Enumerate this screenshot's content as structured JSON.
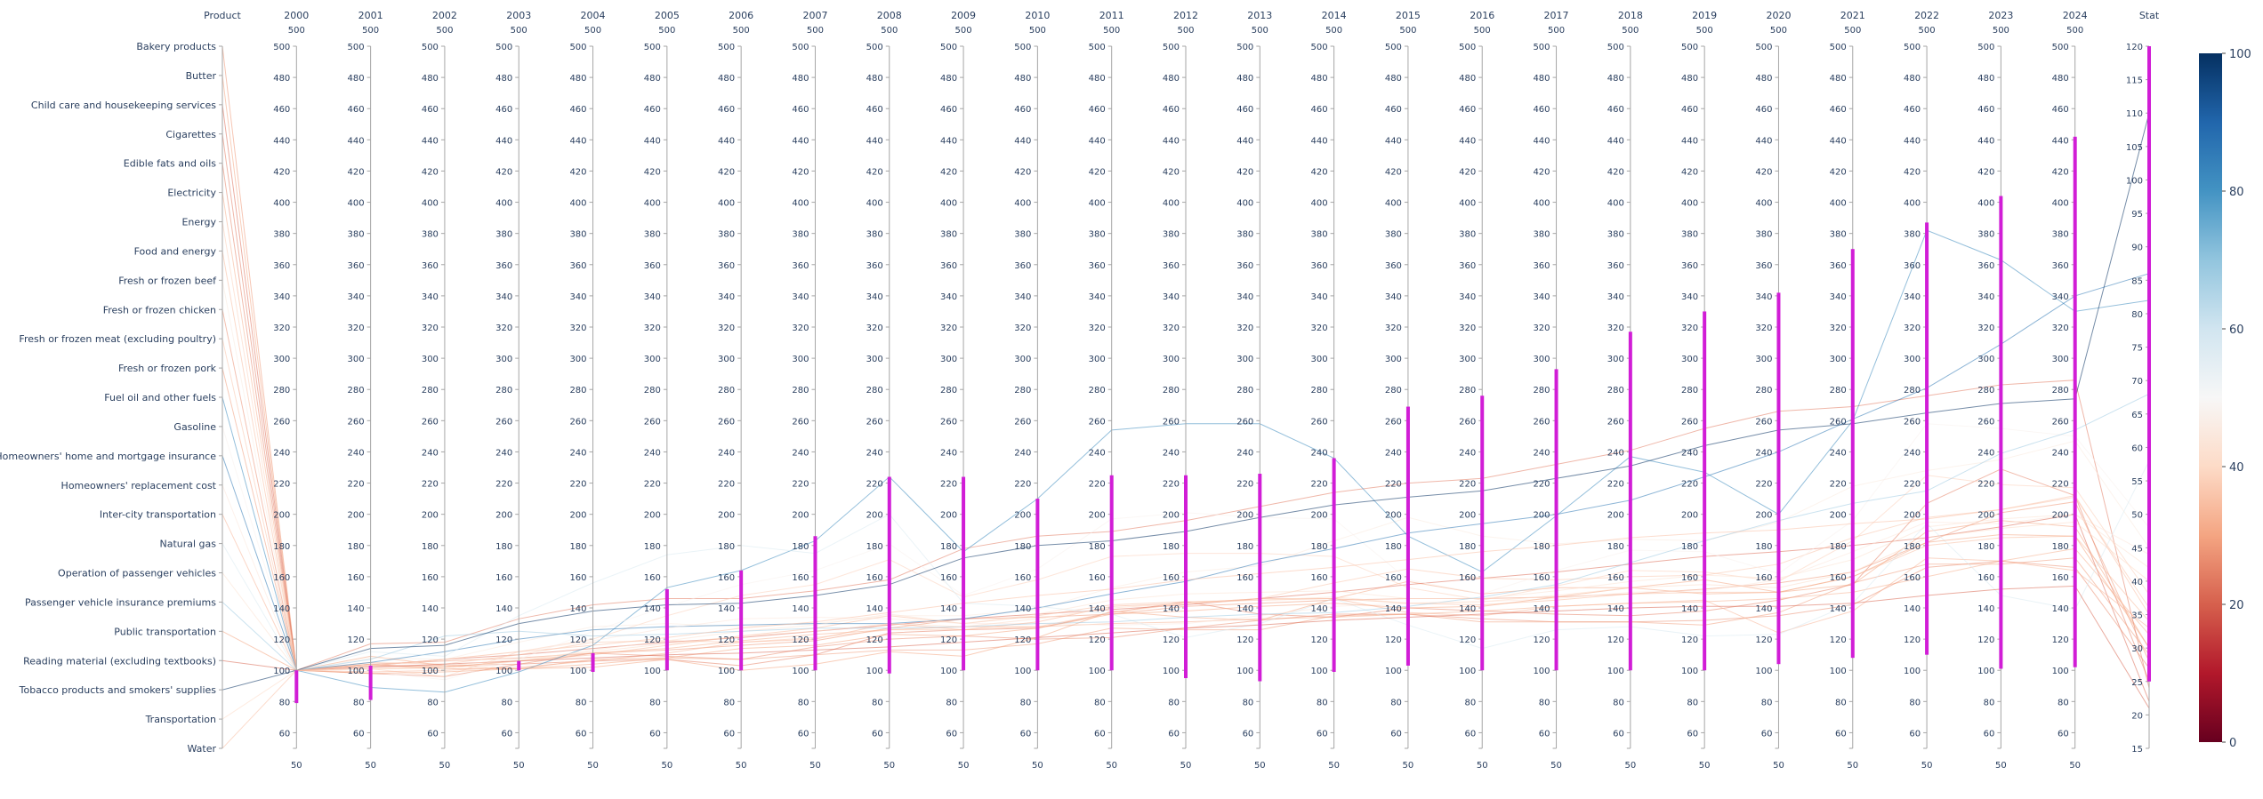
{
  "chart_data": {
    "type": "parallel_coordinates",
    "dimensions": [
      {
        "label": "Product",
        "type": "categorical",
        "tick_labels": [
          "Bakery products",
          "Butter",
          "Child care and housekeeping services",
          "Cigarettes",
          "Edible fats and oils",
          "Electricity",
          "Energy",
          "Food and energy",
          "Fresh or frozen beef",
          "Fresh or frozen chicken",
          "Fresh or frozen meat (excluding poultry)",
          "Fresh or frozen pork",
          "Fuel oil and other fuels",
          "Gasoline",
          "Homeowners' home and mortgage insurance",
          "Homeowners' replacement cost",
          "Inter-city transportation",
          "Natural gas",
          "Operation of passenger vehicles",
          "Passenger vehicle insurance premiums",
          "Public transportation",
          "Reading material (excluding textbooks)",
          "Tobacco products and smokers' supplies",
          "Transportation",
          "Water"
        ]
      },
      {
        "label": "2000",
        "range": [
          50,
          500
        ],
        "constraint": [
          79,
          100
        ]
      },
      {
        "label": "2001",
        "range": [
          50,
          500
        ],
        "constraint": [
          81,
          103
        ]
      },
      {
        "label": "2002",
        "range": [
          50,
          500
        ],
        "constraint": null
      },
      {
        "label": "2003",
        "range": [
          50,
          500
        ],
        "constraint": [
          100,
          106
        ]
      },
      {
        "label": "2004",
        "range": [
          50,
          500
        ],
        "constraint": [
          99,
          111
        ]
      },
      {
        "label": "2005",
        "range": [
          50,
          500
        ],
        "constraint": [
          100,
          152
        ]
      },
      {
        "label": "2006",
        "range": [
          50,
          500
        ],
        "constraint": [
          100,
          164
        ]
      },
      {
        "label": "2007",
        "range": [
          50,
          500
        ],
        "constraint": [
          100,
          186
        ]
      },
      {
        "label": "2008",
        "range": [
          50,
          500
        ],
        "constraint": [
          98,
          224
        ]
      },
      {
        "label": "2009",
        "range": [
          50,
          500
        ],
        "constraint": [
          100,
          224
        ]
      },
      {
        "label": "2010",
        "range": [
          50,
          500
        ],
        "constraint": [
          100,
          210
        ]
      },
      {
        "label": "2011",
        "range": [
          50,
          500
        ],
        "constraint": [
          100,
          225
        ]
      },
      {
        "label": "2012",
        "range": [
          50,
          500
        ],
        "constraint": [
          95,
          225
        ]
      },
      {
        "label": "2013",
        "range": [
          50,
          500
        ],
        "constraint": [
          93,
          226
        ]
      },
      {
        "label": "2014",
        "range": [
          50,
          500
        ],
        "constraint": [
          99,
          236
        ]
      },
      {
        "label": "2015",
        "range": [
          50,
          500
        ],
        "constraint": [
          103,
          269
        ]
      },
      {
        "label": "2016",
        "range": [
          50,
          500
        ],
        "constraint": [
          100,
          276
        ]
      },
      {
        "label": "2017",
        "range": [
          50,
          500
        ],
        "constraint": [
          100,
          293
        ]
      },
      {
        "label": "2018",
        "range": [
          50,
          500
        ],
        "constraint": [
          100,
          317
        ]
      },
      {
        "label": "2019",
        "range": [
          50,
          500
        ],
        "constraint": [
          100,
          330
        ]
      },
      {
        "label": "2020",
        "range": [
          50,
          500
        ],
        "constraint": [
          104,
          342
        ]
      },
      {
        "label": "2021",
        "range": [
          50,
          500
        ],
        "constraint": [
          108,
          370
        ]
      },
      {
        "label": "2022",
        "range": [
          50,
          500
        ],
        "constraint": [
          110,
          387
        ]
      },
      {
        "label": "2023",
        "range": [
          50,
          500
        ],
        "constraint": [
          101,
          404
        ]
      },
      {
        "label": "2024",
        "range": [
          50,
          500
        ],
        "constraint": [
          102,
          442
        ]
      },
      {
        "label": "Stat",
        "range": [
          15,
          120
        ],
        "constraint": [
          25,
          120
        ]
      }
    ],
    "axis_ticks": [
      50,
      60,
      80,
      100,
      120,
      140,
      160,
      180,
      200,
      220,
      240,
      260,
      280,
      300,
      320,
      340,
      360,
      380,
      400,
      420,
      440,
      460,
      480,
      500
    ],
    "stat_ticks": [
      15,
      20,
      25,
      30,
      35,
      40,
      45,
      50,
      55,
      60,
      65,
      70,
      75,
      80,
      85,
      90,
      95,
      100,
      105,
      110,
      115,
      120
    ],
    "colorscale": {
      "name": "RdBu",
      "range": [
        0,
        100
      ],
      "ticks": [
        0,
        20,
        40,
        60,
        80,
        100
      ]
    },
    "lines": [
      {
        "product": "Bakery products",
        "values": [
          100,
          104,
          106,
          108,
          111,
          113,
          116,
          119,
          127,
          133,
          134,
          136,
          141,
          143,
          145,
          146,
          146,
          147,
          149,
          152,
          156,
          163,
          182,
          201,
          208
        ],
        "stat": 28
      },
      {
        "product": "Butter",
        "values": [
          100,
          109,
          103,
          101,
          102,
          107,
          100,
          104,
          112,
          109,
          121,
          138,
          134,
          132,
          146,
          157,
          149,
          153,
          153,
          149,
          150,
          155,
          189,
          196,
          192
        ],
        "stat": 30
      },
      {
        "product": "Child care and housekeeping services",
        "values": [
          100,
          103,
          107,
          110,
          114,
          118,
          121,
          125,
          129,
          133,
          136,
          139,
          142,
          146,
          150,
          155,
          159,
          163,
          168,
          173,
          176,
          180,
          185,
          192,
          200
        ],
        "stat": 22
      },
      {
        "product": "Cigarettes",
        "values": [
          100,
          117,
          118,
          133,
          142,
          146,
          146,
          151,
          158,
          178,
          186,
          189,
          196,
          205,
          214,
          220,
          223,
          232,
          241,
          255,
          266,
          269,
          276,
          283,
          286
        ],
        "stat": 24
      },
      {
        "product": "Edible fats and oils",
        "values": [
          100,
          98,
          96,
          104,
          106,
          107,
          103,
          110,
          124,
          126,
          127,
          137,
          144,
          136,
          134,
          140,
          138,
          136,
          135,
          138,
          145,
          155,
          207,
          229,
          212
        ],
        "stat": 25
      },
      {
        "product": "Electricity",
        "values": [
          100,
          101,
          102,
          106,
          111,
          114,
          119,
          123,
          126,
          128,
          128,
          130,
          131,
          133,
          134,
          136,
          138,
          141,
          143,
          144,
          146,
          150,
          160,
          170,
          178
        ],
        "stat": 32
      },
      {
        "product": "Energy",
        "values": [
          100,
          101,
          96,
          112,
          120,
          135,
          148,
          155,
          171,
          147,
          158,
          173,
          175,
          175,
          173,
          153,
          145,
          154,
          164,
          163,
          157,
          183,
          225,
          219,
          217
        ],
        "stat": 38
      },
      {
        "product": "Food and energy",
        "values": [
          100,
          103,
          102,
          106,
          110,
          116,
          122,
          127,
          135,
          130,
          135,
          142,
          144,
          145,
          146,
          143,
          142,
          145,
          149,
          150,
          150,
          160,
          180,
          185,
          186
        ],
        "stat": 34
      },
      {
        "product": "Fresh or frozen beef",
        "values": [
          100,
          108,
          107,
          118,
          128,
          130,
          128,
          130,
          135,
          135,
          139,
          153,
          163,
          167,
          183,
          198,
          186,
          181,
          184,
          183,
          195,
          218,
          228,
          235,
          247
        ],
        "stat": 45
      },
      {
        "product": "Fresh or frozen chicken",
        "values": [
          100,
          103,
          103,
          104,
          111,
          109,
          107,
          115,
          120,
          122,
          120,
          121,
          127,
          132,
          136,
          136,
          133,
          131,
          131,
          132,
          135,
          142,
          166,
          170,
          166
        ],
        "stat": 27
      },
      {
        "product": "Fresh or frozen meat (excluding poultry)",
        "values": [
          100,
          105,
          104,
          110,
          118,
          119,
          118,
          121,
          126,
          126,
          128,
          137,
          143,
          146,
          156,
          165,
          159,
          158,
          160,
          161,
          168,
          185,
          198,
          203,
          211
        ],
        "stat": 36
      },
      {
        "product": "Fresh or frozen pork",
        "values": [
          100,
          104,
          101,
          101,
          107,
          108,
          107,
          110,
          113,
          113,
          117,
          127,
          126,
          126,
          135,
          136,
          131,
          131,
          131,
          129,
          137,
          156,
          168,
          168,
          172
        ],
        "stat": 29
      },
      {
        "product": "Fuel oil and other fuels",
        "values": [
          100,
          89,
          86,
          99,
          116,
          153,
          164,
          183,
          224,
          176,
          210,
          254,
          258,
          258,
          236,
          186,
          163,
          199,
          237,
          227,
          200,
          260,
          382,
          363,
          330
        ],
        "stat": 82
      },
      {
        "product": "Gasoline",
        "values": [
          100,
          99,
          94,
          107,
          125,
          141,
          155,
          164,
          181,
          148,
          165,
          197,
          201,
          198,
          197,
          158,
          149,
          164,
          177,
          176,
          162,
          196,
          258,
          255,
          250
        ],
        "stat": 48
      },
      {
        "product": "Homeowners' home and mortgage insurance",
        "values": [
          100,
          105,
          112,
          120,
          126,
          128,
          129,
          130,
          130,
          133,
          140,
          149,
          157,
          169,
          178,
          188,
          194,
          200,
          209,
          224,
          240,
          261,
          281,
          309,
          340
        ],
        "stat": 86
      },
      {
        "product": "Homeowners' replacement cost",
        "values": [
          100,
          103,
          107,
          112,
          119,
          127,
          133,
          134,
          133,
          130,
          130,
          129,
          130,
          135,
          141,
          143,
          144,
          146,
          150,
          151,
          158,
          176,
          195,
          194,
          200
        ],
        "stat": 44
      },
      {
        "product": "Inter-city transportation",
        "values": [
          100,
          99,
          100,
          102,
          106,
          111,
          118,
          120,
          130,
          126,
          131,
          141,
          143,
          146,
          146,
          137,
          135,
          141,
          143,
          145,
          124,
          138,
          172,
          170,
          164
        ],
        "stat": 33
      },
      {
        "product": "Natural gas",
        "values": [
          100,
          112,
          109,
          135,
          156,
          174,
          180,
          175,
          200,
          143,
          141,
          136,
          121,
          130,
          146,
          129,
          114,
          126,
          128,
          122,
          123,
          143,
          194,
          148,
          139
        ],
        "stat": 58
      },
      {
        "product": "Operation of passenger vehicles",
        "values": [
          100,
          101,
          101,
          106,
          113,
          119,
          125,
          129,
          136,
          130,
          136,
          145,
          149,
          150,
          151,
          146,
          146,
          151,
          157,
          161,
          159,
          171,
          192,
          197,
          200
        ],
        "stat": 42
      },
      {
        "product": "Passenger vehicle insurance premiums",
        "values": [
          100,
          107,
          122,
          125,
          122,
          123,
          125,
          127,
          127,
          128,
          130,
          131,
          134,
          136,
          137,
          141,
          147,
          155,
          169,
          183,
          196,
          207,
          215,
          239,
          254
        ],
        "stat": 68
      },
      {
        "product": "Public transportation",
        "values": [
          100,
          98,
          99,
          101,
          104,
          108,
          114,
          116,
          123,
          122,
          127,
          136,
          138,
          141,
          143,
          140,
          141,
          147,
          153,
          158,
          150,
          160,
          182,
          187,
          186
        ],
        "stat": 30
      },
      {
        "product": "Reading material (excluding textbooks)",
        "values": [
          100,
          102,
          104,
          106,
          108,
          110,
          111,
          113,
          115,
          118,
          121,
          124,
          127,
          129,
          132,
          134,
          136,
          138,
          140,
          141,
          141,
          143,
          148,
          152,
          154
        ],
        "stat": 21
      },
      {
        "product": "Tobacco products and smokers' supplies",
        "values": [
          100,
          114,
          116,
          130,
          138,
          142,
          143,
          148,
          155,
          172,
          180,
          183,
          189,
          198,
          206,
          211,
          215,
          223,
          231,
          244,
          254,
          258,
          265,
          271,
          274
        ],
        "stat": 110
      },
      {
        "product": "Transportation",
        "values": [
          100,
          101,
          103,
          107,
          112,
          117,
          122,
          125,
          130,
          128,
          133,
          140,
          143,
          145,
          147,
          143,
          144,
          148,
          153,
          155,
          153,
          163,
          185,
          191,
          195
        ],
        "stat": 40
      },
      {
        "product": "Water",
        "values": [
          100,
          103,
          107,
          112,
          116,
          121,
          127,
          131,
          137,
          143,
          148,
          152,
          158,
          162,
          166,
          171,
          176,
          180,
          185,
          188,
          190,
          194,
          197,
          203,
          212
        ],
        "stat": 35
      }
    ]
  }
}
